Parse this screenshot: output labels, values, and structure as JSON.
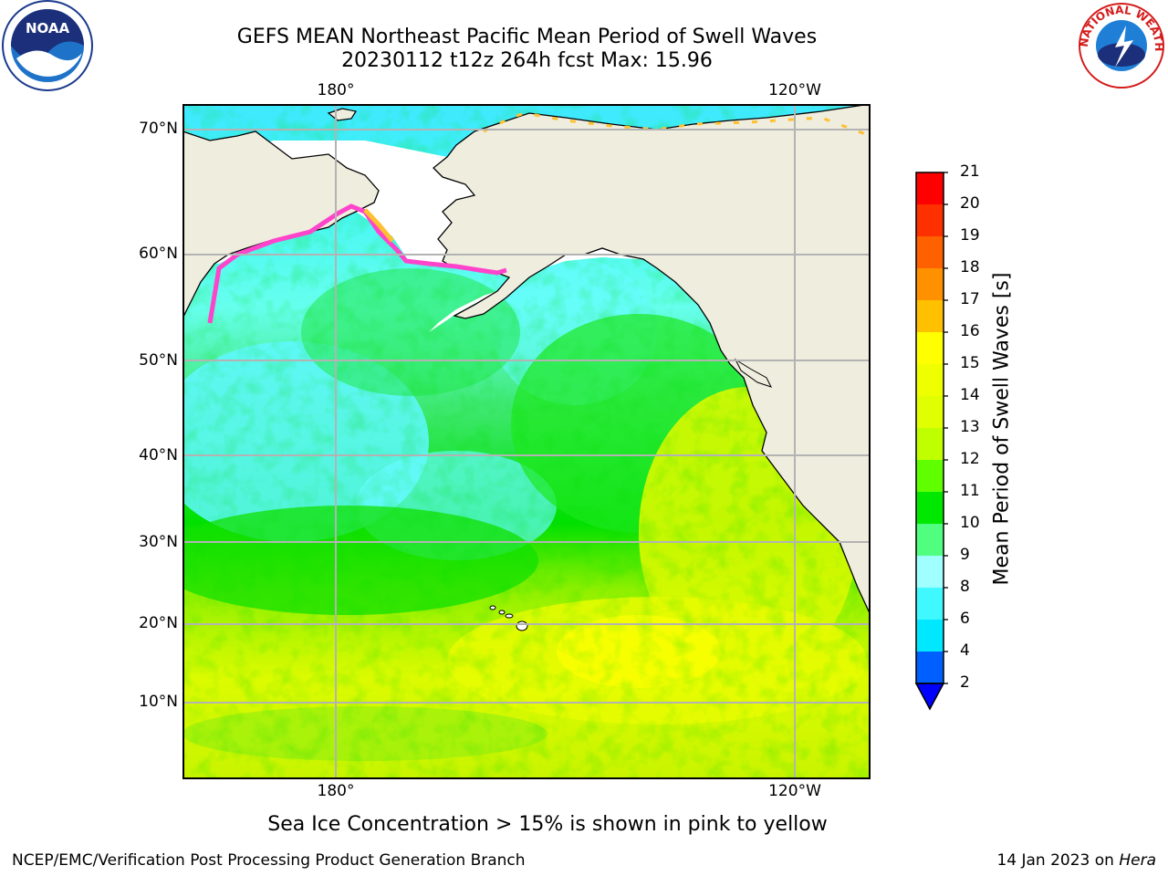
{
  "title": {
    "line1": "GEFS MEAN Northeast Pacific Mean Period of Swell Waves",
    "line2": "20230112 t12z 264h fcst   Max: 15.96"
  },
  "logos": {
    "noaa": "NOAA",
    "nws": "NATIONAL WEATHER SERVICE"
  },
  "map": {
    "top_lon_labels": [
      "180°",
      "120°W"
    ],
    "bottom_lon_labels": [
      "180°",
      "120°W"
    ],
    "lat_labels": [
      "70°N",
      "60°N",
      "50°N",
      "40°N",
      "30°N",
      "20°N",
      "10°N"
    ],
    "colors": {
      "land": "#efedde",
      "ice_pink": "#ff44cc",
      "ice_yellow": "#ffc030"
    }
  },
  "colorbar": {
    "label": "Mean Period of Swell Waves [s]",
    "ticks": [
      "2",
      "4",
      "6",
      "8",
      "9",
      "10",
      "11",
      "12",
      "13",
      "14",
      "15",
      "16",
      "17",
      "18",
      "19",
      "20",
      "21"
    ],
    "colors": [
      "#0060ff",
      "#00e8ff",
      "#40f8ff",
      "#a0ffff",
      "#50ff80",
      "#00e800",
      "#60ff00",
      "#c0ff00",
      "#e0ff00",
      "#f0ff00",
      "#ffff00",
      "#ffc000",
      "#ff9000",
      "#ff6000",
      "#ff3000",
      "#ff0000"
    ],
    "extend_color": "#0000ff"
  },
  "note": "Sea Ice Concentration > 15% is shown in pink to yellow",
  "footer": {
    "left": "NCEP/EMC/Verification Post Processing Product Generation Branch",
    "date": "14 Jan 2023 on ",
    "machine": "Hera"
  }
}
